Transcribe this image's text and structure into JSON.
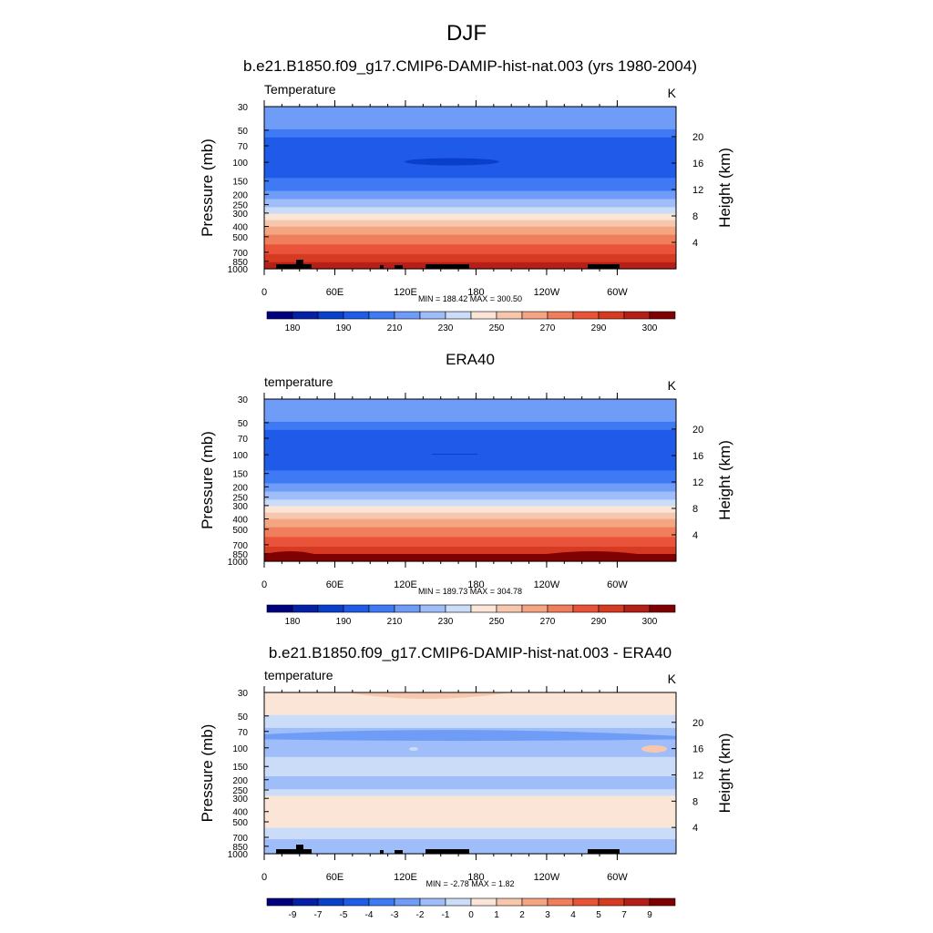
{
  "figure": {
    "title": "DJF",
    "x_tick_labels": [
      "0",
      "60E",
      "120E",
      "180",
      "120W",
      "60W"
    ],
    "y_left_label": "Pressure (mb)",
    "y_right_label": "Height (km)",
    "y_left_ticks": [
      "30",
      "50",
      "70",
      "100",
      "150",
      "200",
      "250",
      "300",
      "400",
      "500",
      "700",
      "850",
      "1000"
    ],
    "y_right_ticks": [
      "20",
      "16",
      "12",
      "8",
      "4"
    ]
  },
  "chart_data": [
    {
      "type": "heatmap",
      "title": "b.e21.B1850.f09_g17.CMIP6-DAMIP-hist-nat.003 (yrs 1980-2004)",
      "left_string": "Temperature",
      "right_string": "K",
      "x": [
        0,
        60,
        120,
        180,
        240,
        300
      ],
      "ylim_pressure": [
        1000,
        30
      ],
      "min_max": "MIN = 188.42  MAX = 300.50",
      "min": 188.42,
      "max": 300.5,
      "colorbar_labels": [
        "180",
        "190",
        "210",
        "230",
        "250",
        "270",
        "290",
        "300"
      ],
      "colorbar_colors": [
        "#00007f",
        "#0320a6",
        "#0a3fcc",
        "#1f5be8",
        "#3f7af4",
        "#6e9cf7",
        "#9fbdf8",
        "#cbdcf9",
        "#fbe5d6",
        "#f7c7ad",
        "#f4a582",
        "#f07e5c",
        "#e8533a",
        "#d63a22",
        "#b42018",
        "#7f0000"
      ]
    },
    {
      "type": "heatmap",
      "title": "ERA40",
      "left_string": "temperature",
      "right_string": "K",
      "x": [
        0,
        60,
        120,
        180,
        240,
        300
      ],
      "ylim_pressure": [
        1000,
        30
      ],
      "min_max": "MIN = 189.73  MAX = 304.78",
      "min": 189.73,
      "max": 304.78,
      "colorbar_labels": [
        "180",
        "190",
        "210",
        "230",
        "250",
        "270",
        "290",
        "300"
      ],
      "colorbar_colors": [
        "#00007f",
        "#0320a6",
        "#0a3fcc",
        "#1f5be8",
        "#3f7af4",
        "#6e9cf7",
        "#9fbdf8",
        "#cbdcf9",
        "#fbe5d6",
        "#f7c7ad",
        "#f4a582",
        "#f07e5c",
        "#e8533a",
        "#d63a22",
        "#b42018",
        "#7f0000"
      ]
    },
    {
      "type": "heatmap",
      "title": "b.e21.B1850.f09_g17.CMIP6-DAMIP-hist-nat.003 - ERA40",
      "left_string": "temperature",
      "right_string": "K",
      "x": [
        0,
        60,
        120,
        180,
        240,
        300
      ],
      "ylim_pressure": [
        1000,
        30
      ],
      "min_max": "MIN =  -2.78  MAX =   1.82",
      "min": -2.78,
      "max": 1.82,
      "colorbar_labels": [
        "-9",
        "-7",
        "-5",
        "-4",
        "-3",
        "-2",
        "-1",
        "0",
        "1",
        "2",
        "3",
        "4",
        "5",
        "7",
        "9"
      ],
      "colorbar_colors": [
        "#00007f",
        "#0320a6",
        "#0a3fcc",
        "#1f5be8",
        "#3f7af4",
        "#6e9cf7",
        "#9fbdf8",
        "#cbdcf9",
        "#fbe5d6",
        "#f7c7ad",
        "#f4a582",
        "#f07e5c",
        "#e8533a",
        "#d63a22",
        "#b42018",
        "#7f0000"
      ]
    }
  ]
}
